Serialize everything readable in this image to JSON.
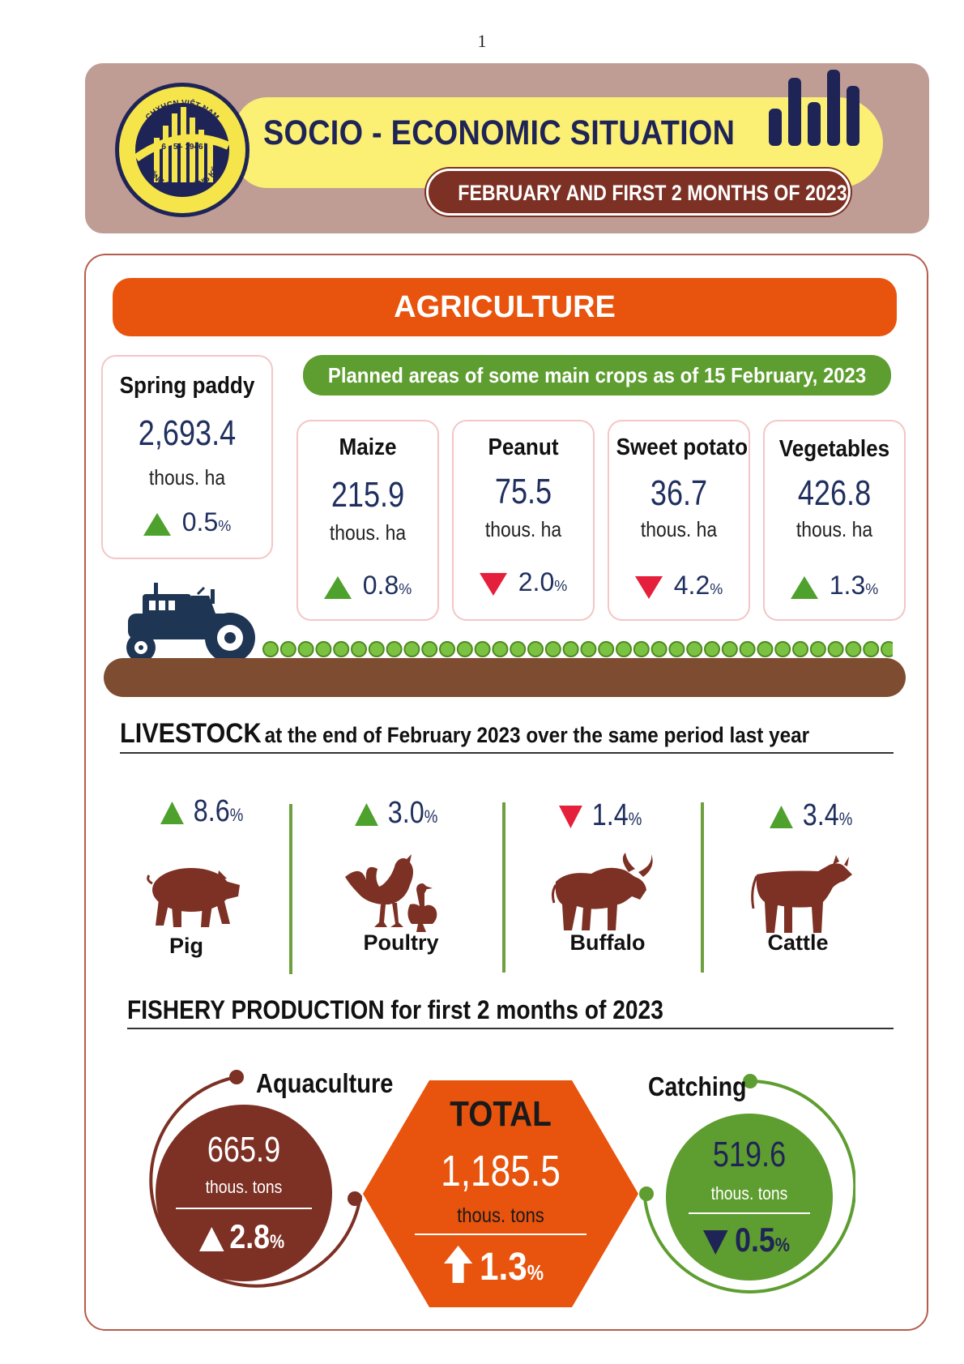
{
  "page_number": "1",
  "header": {
    "title": "SOCIO - ECONOMIC SITUATION",
    "subtitle": "FEBRUARY AND FIRST 2 MONTHS OF 2023",
    "logo_text_top": "CHXHCN VIỆT NAM",
    "logo_date": "6 - 5 - 1946",
    "logo_text_bottom": "TỔNG CỤC THỐNG KÊ"
  },
  "agriculture": {
    "title": "AGRICULTURE",
    "planned_title": "Planned areas of some main crops as of 15 February, 2023",
    "spring_paddy": {
      "name": "Spring paddy",
      "value": "2,693.4",
      "unit": "thous. ha",
      "change": "0.5",
      "pct": "%",
      "direction": "up"
    },
    "crops": [
      {
        "name": "Maize",
        "value": "215.9",
        "unit": "thous. ha",
        "change": "0.8",
        "pct": "%",
        "direction": "up"
      },
      {
        "name": "Peanut",
        "value": "75.5",
        "unit": "thous. ha",
        "change": "2.0",
        "pct": "%",
        "direction": "down"
      },
      {
        "name": "Sweet potato",
        "value": "36.7",
        "unit": "thous. ha",
        "change": "4.2",
        "pct": "%",
        "direction": "down"
      },
      {
        "name": "Vegetables",
        "value": "426.8",
        "unit": "thous. ha",
        "change": "1.3",
        "pct": "%",
        "direction": "up"
      }
    ]
  },
  "livestock": {
    "title_bold": "LIVESTOCK",
    "title_rest": "at the end of February 2023 over the same period last year",
    "items": [
      {
        "name": "Pig",
        "change": "8.6",
        "pct": "%",
        "direction": "up",
        "icon": "pig-icon"
      },
      {
        "name": "Poultry",
        "change": "3.0",
        "pct": "%",
        "direction": "up",
        "icon": "poultry-icon"
      },
      {
        "name": "Buffalo",
        "change": "1.4",
        "pct": "%",
        "direction": "down",
        "icon": "buffalo-icon"
      },
      {
        "name": "Cattle",
        "change": "3.4",
        "pct": "%",
        "direction": "up",
        "icon": "cattle-icon"
      }
    ]
  },
  "fishery": {
    "title": "FISHERY PRODUCTION for first 2 months of 2023",
    "aquaculture": {
      "label": "Aquaculture",
      "value": "665.9",
      "unit": "thous. tons",
      "change": "2.8",
      "pct": "%",
      "direction": "up"
    },
    "total": {
      "label": "TOTAL",
      "value": "1,185.5",
      "unit": "thous. tons",
      "change": "1.3",
      "pct": "%",
      "direction": "up"
    },
    "catching": {
      "label": "Catching",
      "value": "519.6",
      "unit": "thous. tons",
      "change": "0.5",
      "pct": "%",
      "direction": "down"
    }
  },
  "colors": {
    "navy": "#1f2457",
    "orange": "#e8530d",
    "green": "#5e9d2f",
    "brown": "#7d3024",
    "up_green": "#4ea12d",
    "down_red": "#e5203d"
  }
}
